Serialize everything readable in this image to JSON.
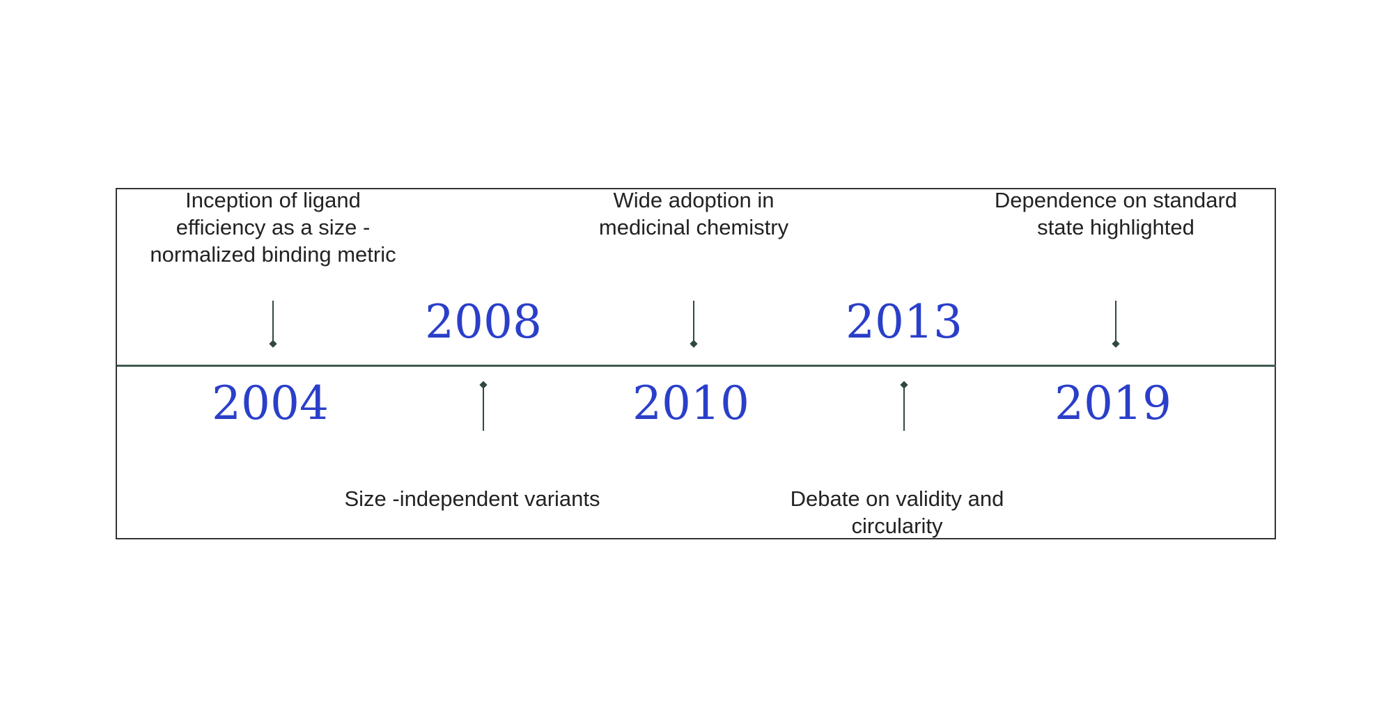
{
  "timeline": {
    "events": [
      {
        "year": "2004",
        "label": "Inception of ligand\nefficiency as a size   -\nnormalized binding metric",
        "side": "top"
      },
      {
        "year": "2008",
        "label": "Size -independent variants",
        "side": "bottom"
      },
      {
        "year": "2010",
        "label": "Wide adoption in\nmedicinal chemistry",
        "side": "top"
      },
      {
        "year": "2013",
        "label": "Debate on validity and\ncircularity",
        "side": "bottom"
      },
      {
        "year": "2019",
        "label": "Dependence on standard\nstate highlighted",
        "side": "top"
      }
    ],
    "colors": {
      "year": "#2a3fc9",
      "axis": "#3f5a4d",
      "text": "#222222"
    }
  }
}
